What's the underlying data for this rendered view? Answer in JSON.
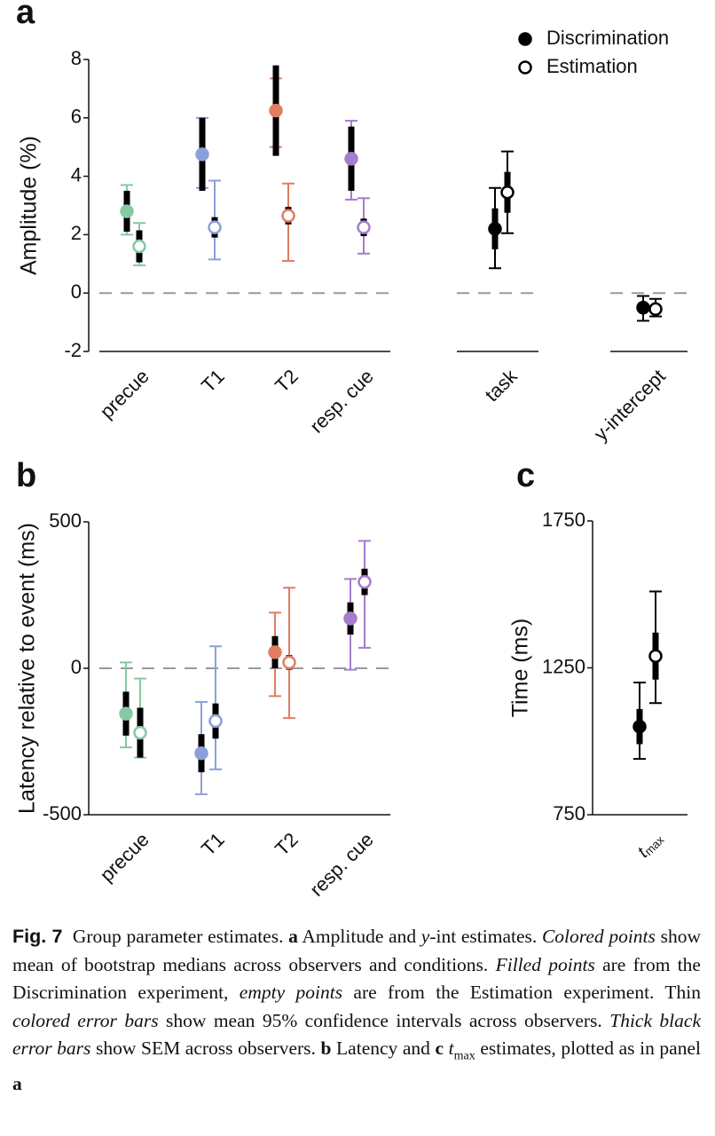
{
  "chart_data": [
    {
      "type": "errorbar",
      "panel": "a",
      "ylabel": "Amplitude (%)",
      "categories": [
        "precue",
        "T1",
        "T2",
        "resp. cue",
        "task",
        "y-intercept"
      ],
      "category_colors": [
        "#86c9a3",
        "#8d9fd9",
        "#e17d62",
        "#a67ccb",
        "#000000",
        "#000000"
      ],
      "ylim": [
        -2,
        8
      ],
      "yticks": [
        -2,
        0,
        2,
        4,
        6,
        8
      ],
      "reference_line": 0,
      "legend": "upper right",
      "series": [
        {
          "name": "Discrimination",
          "color": "#000000",
          "marker": "filled",
          "values": [
            2.8,
            4.75,
            6.25,
            4.6,
            2.2,
            -0.5
          ],
          "ci_low": [
            2.0,
            3.6,
            5.0,
            3.2,
            0.85,
            -0.95
          ],
          "ci_high": [
            3.7,
            6.0,
            7.35,
            5.9,
            3.6,
            -0.1
          ],
          "sem": [
            0.7,
            1.25,
            1.55,
            1.1,
            0.7,
            0.2
          ]
        },
        {
          "name": "Estimation",
          "color": "#000000",
          "marker": "open",
          "values": [
            1.6,
            2.25,
            2.65,
            2.25,
            3.45,
            -0.55
          ],
          "ci_low": [
            0.95,
            1.15,
            1.1,
            1.35,
            2.05,
            -0.8
          ],
          "ci_high": [
            2.4,
            3.85,
            3.75,
            3.25,
            4.85,
            -0.2
          ],
          "sem": [
            0.55,
            0.35,
            0.3,
            0.3,
            0.7,
            0.15
          ]
        }
      ]
    },
    {
      "type": "errorbar",
      "panel": "b",
      "ylabel": "Latency relative to event (ms)",
      "categories": [
        "precue",
        "T1",
        "T2",
        "resp. cue"
      ],
      "category_colors": [
        "#86c9a3",
        "#8d9fd9",
        "#e17d62",
        "#a67ccb"
      ],
      "ylim": [
        -500,
        500
      ],
      "yticks": [
        -500,
        0,
        500
      ],
      "reference_line": 0,
      "series": [
        {
          "name": "Discrimination",
          "color": "#000000",
          "marker": "filled",
          "values": [
            -155,
            -290,
            55,
            170
          ],
          "ci_low": [
            -270,
            -430,
            -95,
            -5
          ],
          "ci_high": [
            20,
            -115,
            190,
            305
          ],
          "sem": [
            75,
            65,
            55,
            55
          ]
        },
        {
          "name": "Estimation",
          "color": "#000000",
          "marker": "open",
          "values": [
            -220,
            -180,
            20,
            295
          ],
          "ci_low": [
            -305,
            -345,
            -170,
            70
          ],
          "ci_high": [
            -35,
            75,
            275,
            435
          ],
          "sem": [
            85,
            60,
            25,
            45
          ]
        }
      ]
    },
    {
      "type": "errorbar",
      "panel": "c",
      "ylabel": "Time (ms)",
      "categories": [
        "t"
      ],
      "category_subscripts": [
        "max"
      ],
      "category_colors": [
        "#000000"
      ],
      "ylim": [
        750,
        1750
      ],
      "yticks": [
        750,
        1250,
        1750
      ],
      "series": [
        {
          "name": "Discrimination",
          "color": "#000000",
          "marker": "filled",
          "values": [
            1050
          ],
          "ci_low": [
            940
          ],
          "ci_high": [
            1200
          ],
          "sem": [
            60
          ]
        },
        {
          "name": "Estimation",
          "color": "#000000",
          "marker": "open",
          "values": [
            1290
          ],
          "ci_low": [
            1130
          ],
          "ci_high": [
            1510
          ],
          "sem": [
            80
          ]
        }
      ]
    }
  ],
  "caption": {
    "runs": [
      {
        "text": "Fig. 7",
        "style": "label"
      },
      {
        "text": "  Group parameter estimates. ",
        "style": "normal"
      },
      {
        "text": "a",
        "style": "bold"
      },
      {
        "text": " Amplitude and ",
        "style": "normal"
      },
      {
        "text": "y",
        "style": "italic"
      },
      {
        "text": "-int estimates. ",
        "style": "normal"
      },
      {
        "text": "Colored points",
        "style": "italic"
      },
      {
        "text": " show mean of bootstrap medians across observers and conditions. ",
        "style": "normal"
      },
      {
        "text": "Filled points",
        "style": "italic"
      },
      {
        "text": " are from the Discrimination experiment, ",
        "style": "normal"
      },
      {
        "text": "empty points",
        "style": "italic"
      },
      {
        "text": " are from the Estimation experiment. Thin ",
        "style": "normal"
      },
      {
        "text": "colored error bars",
        "style": "italic"
      },
      {
        "text": " show mean 95% confidence intervals across observers. ",
        "style": "normal"
      },
      {
        "text": "Thick black error bars",
        "style": "italic"
      },
      {
        "text": " show SEM across observers. ",
        "style": "normal"
      },
      {
        "text": "b",
        "style": "bold"
      },
      {
        "text": " Latency and ",
        "style": "normal"
      },
      {
        "text": "c",
        "style": "bold"
      },
      {
        "text": " ",
        "style": "normal"
      },
      {
        "text": "t",
        "style": "italic"
      },
      {
        "text": "max",
        "style": "sub"
      },
      {
        "text": " estimates, plotted as in panel ",
        "style": "normal"
      },
      {
        "text": "a",
        "style": "bold"
      }
    ]
  }
}
